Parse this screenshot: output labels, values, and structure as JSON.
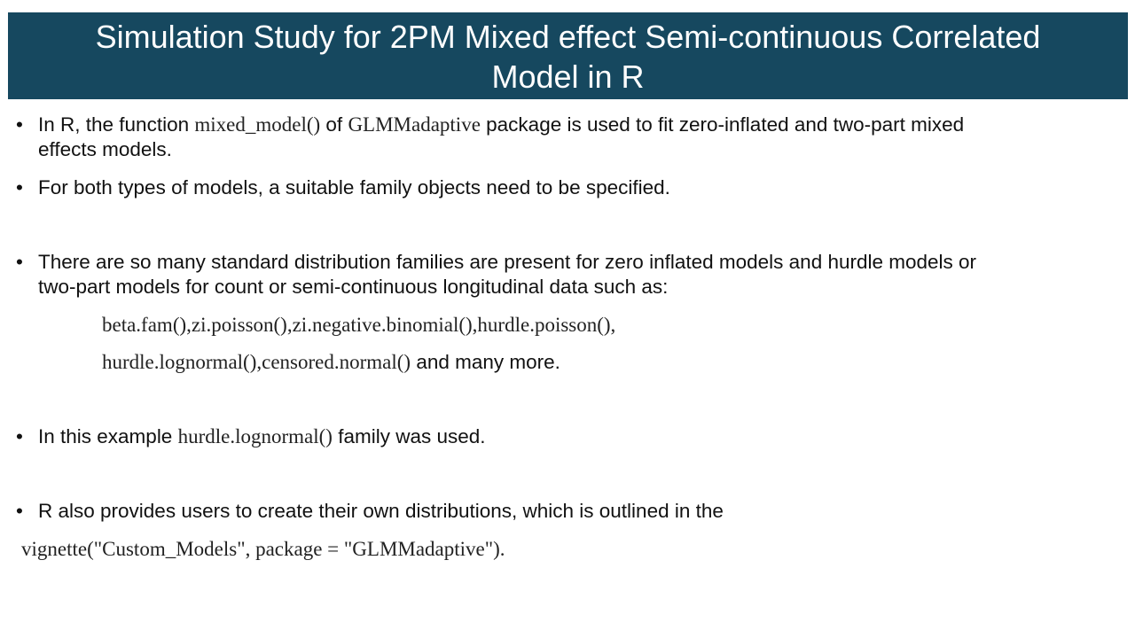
{
  "slide": {
    "title_line1": "Simulation Study for 2PM Mixed effect Semi-continuous Correlated",
    "title_line2": "Model in R",
    "bullet_symbol": "•",
    "bullet1": {
      "part1": "In R, the function ",
      "code1": "mixed_model()",
      "part2": " of ",
      "code2": "GLMMadaptive",
      "part3": " package is used to fit zero-inflated and two-part mixed",
      "line2": "effects models."
    },
    "bullet2": {
      "text": "For both types of models, a suitable family objects need to be specified."
    },
    "bullet3": {
      "line1": "There are so many standard distribution families are present for zero inflated models and hurdle models or",
      "line2": "two-part models for count or semi-continuous longitudinal data such as:"
    },
    "families": {
      "line1_code": "beta.fam(),zi.poisson(),zi.negative.binomial(),hurdle.poisson(),",
      "line2_code": "hurdle.lognormal(),censored.normal()",
      "line2_text": " and many more."
    },
    "bullet4": {
      "part1": "In this example ",
      "code": "hurdle.lognormal()",
      "part2": " family was used."
    },
    "bullet5": {
      "text": "R also provides users to create their own distributions, which is outlined in the",
      "code_line": "vignette(\"Custom_Models\", package = \"GLMMadaptive\")."
    },
    "colors": {
      "title_bg": "#16485f",
      "title_text": "#ffffff",
      "body_text": "#111111"
    }
  }
}
